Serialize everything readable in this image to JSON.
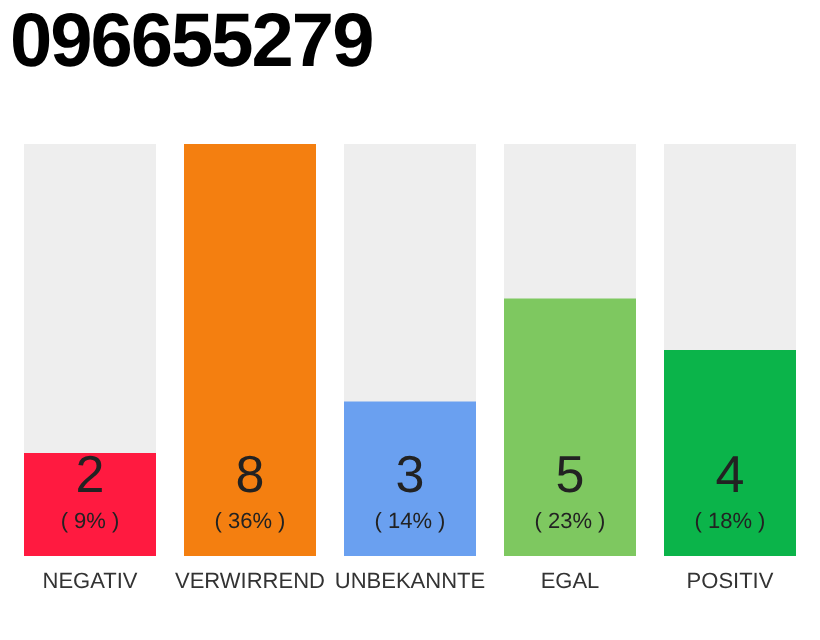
{
  "chart_data": {
    "type": "bar",
    "title": "096655279",
    "categories": [
      "NEGATIV",
      "VERWIRREND",
      "UNBEKANNTE",
      "EGAL",
      "POSITIV"
    ],
    "values": [
      2,
      8,
      3,
      5,
      4
    ],
    "colors": [
      "#ff1a40",
      "#f47f10",
      "#6aa0f0",
      "#7ec860",
      "#0bb44a"
    ],
    "data_labels": true,
    "annotations": [
      "( 9% )",
      "( 36% )",
      "( 14% )",
      "( 23% )",
      "( 18% )"
    ],
    "tick_labels": "x"
  }
}
